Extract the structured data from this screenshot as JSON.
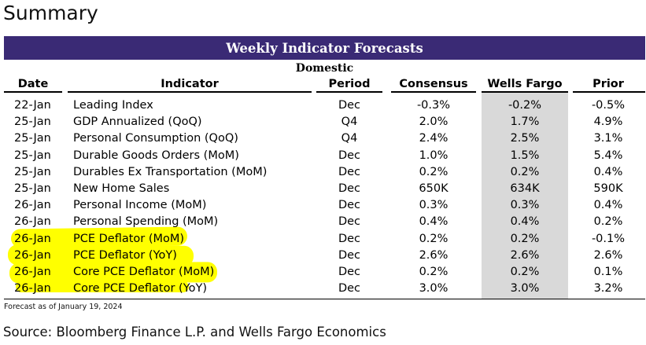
{
  "title": "Summary",
  "banner": "Weekly Indicator Forecasts",
  "section": "Domestic",
  "headers": {
    "date": "Date",
    "indicator": "Indicator",
    "period": "Period",
    "consensus": "Consensus",
    "wells_fargo": "Wells Fargo",
    "prior": "Prior"
  },
  "rows": [
    {
      "date": "22-Jan",
      "indicator": "Leading Index",
      "period": "Dec",
      "consensus": "-0.3%",
      "wells_fargo": "-0.2%",
      "prior": "-0.5%",
      "highlighted": false
    },
    {
      "date": "25-Jan",
      "indicator": "GDP Annualized (QoQ)",
      "period": "Q4",
      "consensus": "2.0%",
      "wells_fargo": "1.7%",
      "prior": "4.9%",
      "highlighted": false
    },
    {
      "date": "25-Jan",
      "indicator": "Personal Consumption (QoQ)",
      "period": "Q4",
      "consensus": "2.4%",
      "wells_fargo": "2.5%",
      "prior": "3.1%",
      "highlighted": false
    },
    {
      "date": "25-Jan",
      "indicator": "Durable Goods Orders (MoM)",
      "period": "Dec",
      "consensus": "1.0%",
      "wells_fargo": "1.5%",
      "prior": "5.4%",
      "highlighted": false
    },
    {
      "date": "25-Jan",
      "indicator": "Durables Ex Transportation (MoM)",
      "period": "Dec",
      "consensus": "0.2%",
      "wells_fargo": "0.2%",
      "prior": "0.4%",
      "highlighted": false
    },
    {
      "date": "25-Jan",
      "indicator": "New Home Sales",
      "period": "Dec",
      "consensus": "650K",
      "wells_fargo": "634K",
      "prior": "590K",
      "highlighted": false
    },
    {
      "date": "26-Jan",
      "indicator": "Personal Income (MoM)",
      "period": "Dec",
      "consensus": "0.3%",
      "wells_fargo": "0.3%",
      "prior": "0.4%",
      "highlighted": false
    },
    {
      "date": "26-Jan",
      "indicator": "Personal  Spending (MoM)",
      "period": "Dec",
      "consensus": "0.4%",
      "wells_fargo": "0.4%",
      "prior": "0.2%",
      "highlighted": false
    },
    {
      "date": "26-Jan",
      "indicator": "PCE Deflator (MoM)",
      "period": "Dec",
      "consensus": "0.2%",
      "wells_fargo": "0.2%",
      "prior": "-0.1%",
      "highlighted": true
    },
    {
      "date": "26-Jan",
      "indicator": "PCE Deflator (YoY)",
      "period": "Dec",
      "consensus": "2.6%",
      "wells_fargo": "2.6%",
      "prior": "2.6%",
      "highlighted": true
    },
    {
      "date": "26-Jan",
      "indicator": "Core PCE Deflator (MoM)",
      "period": "Dec",
      "consensus": "0.2%",
      "wells_fargo": "0.2%",
      "prior": "0.1%",
      "highlighted": true
    },
    {
      "date": "26-Jan",
      "indicator": "Core PCE Deflator (YoY)",
      "period": "Dec",
      "consensus": "3.0%",
      "wells_fargo": "3.0%",
      "prior": "3.2%",
      "highlighted": true
    }
  ],
  "as_of": "Forecast as of January 19, 2024",
  "source": "Source: Bloomberg Finance L.P. and Wells Fargo Economics",
  "colors": {
    "banner": "#3a2a75",
    "highlight": "#ffff00",
    "wells_fargo_column": "#d9d9d9"
  }
}
